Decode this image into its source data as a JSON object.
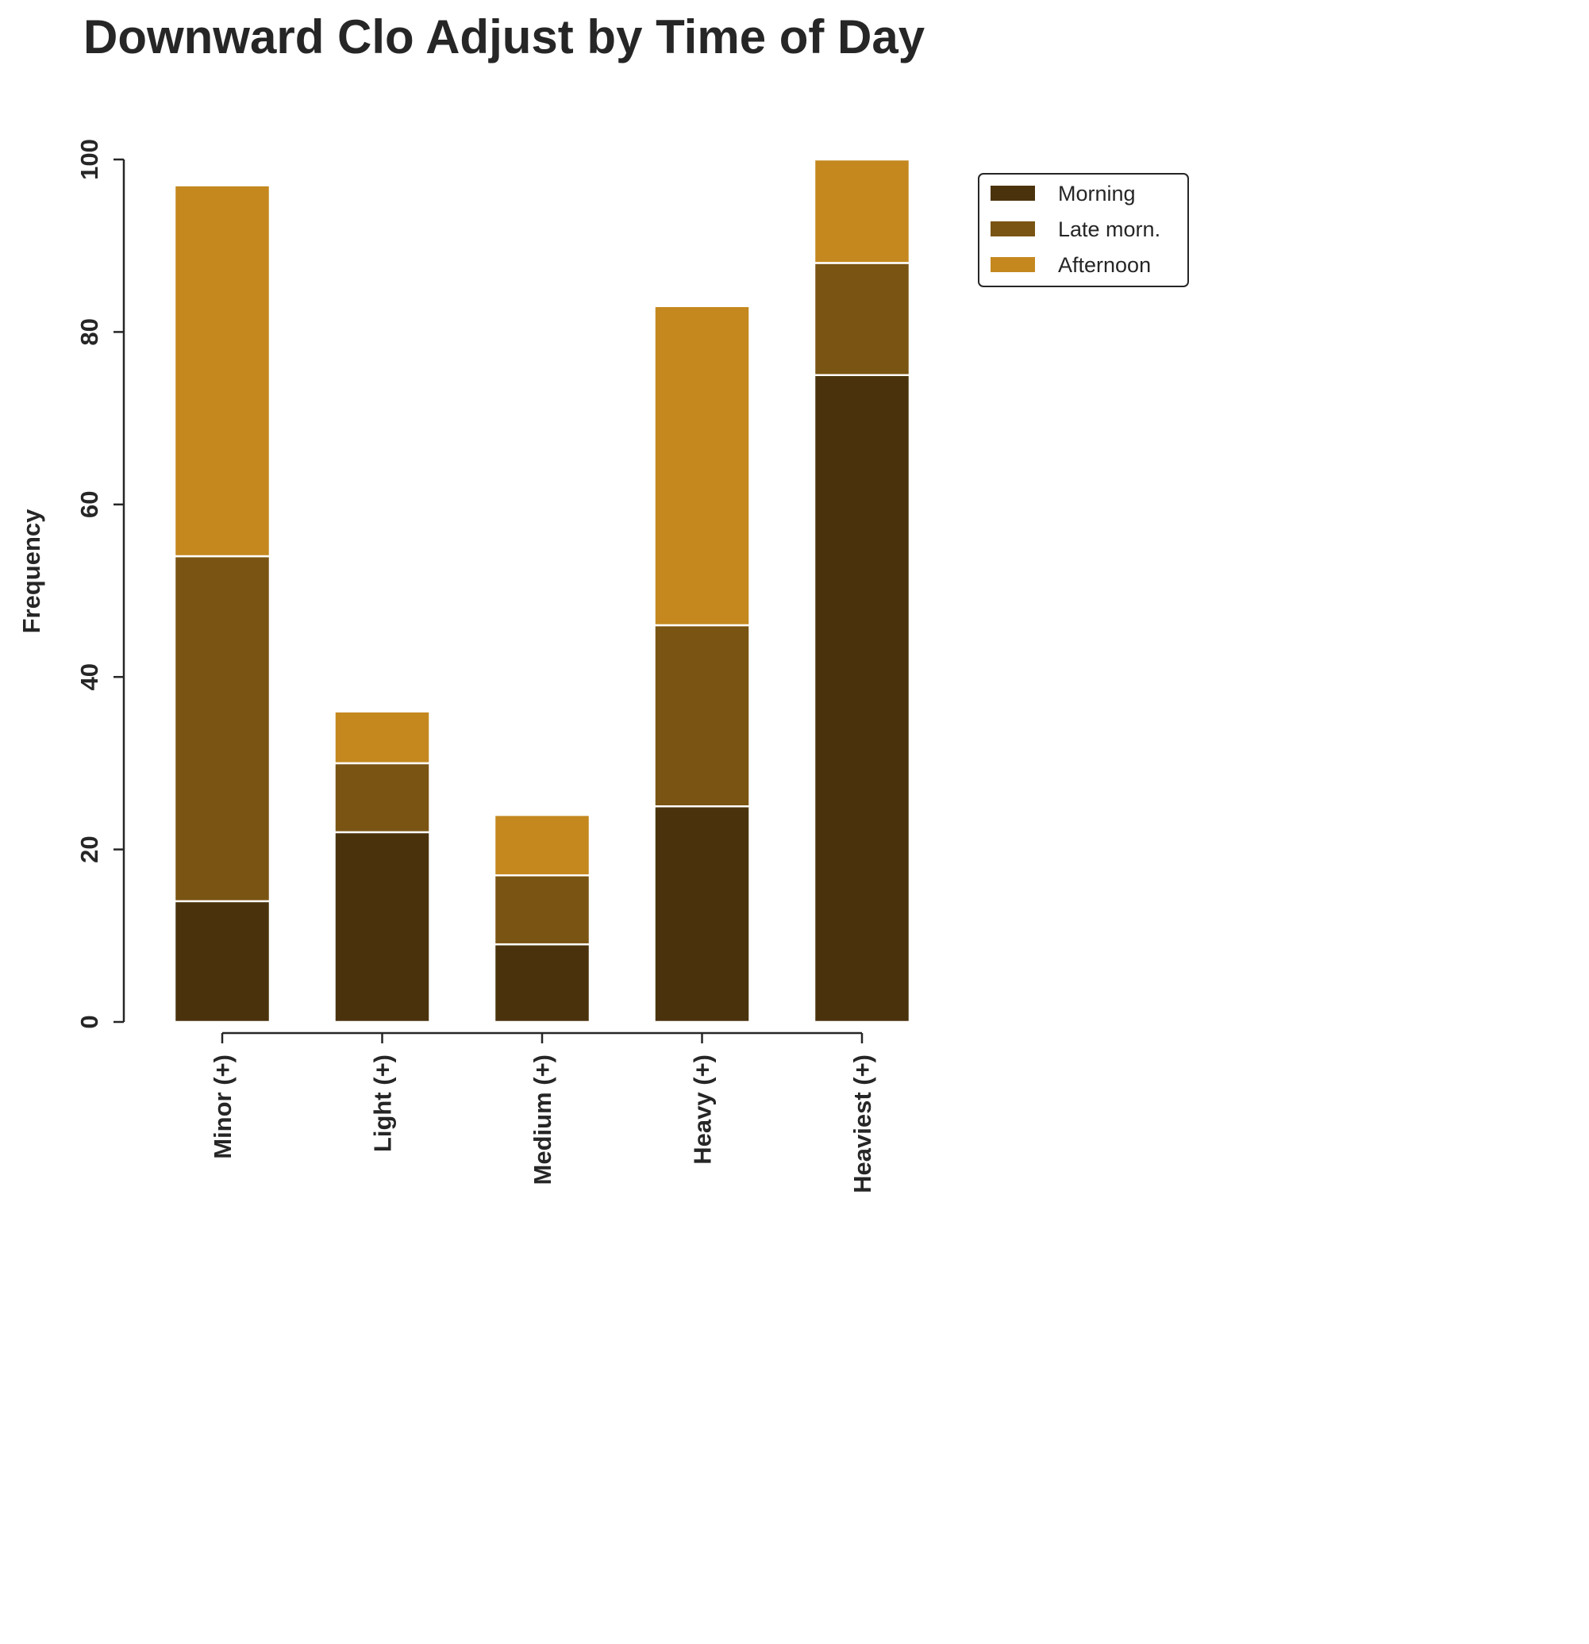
{
  "chart_data": {
    "type": "bar",
    "stacked": true,
    "title": "Downward Clo Adjust by Time of Day",
    "xlabel": "",
    "ylabel": "Frequency",
    "categories": [
      "Minor (+)",
      "Light (+)",
      "Medium (+)",
      "Heavy (+)",
      "Heaviest (+)"
    ],
    "series": [
      {
        "name": "Morning",
        "color": "#4a330c",
        "values": [
          14,
          22,
          9,
          25,
          75
        ]
      },
      {
        "name": "Late morn.",
        "color": "#7a5413",
        "values": [
          40,
          8,
          8,
          21,
          13
        ]
      },
      {
        "name": "Afternoon",
        "color": "#c4881f",
        "values": [
          43,
          6,
          7,
          37,
          12
        ]
      }
    ],
    "ylim": [
      0,
      100
    ],
    "yticks": [
      0,
      20,
      40,
      60,
      80,
      100
    ],
    "grid": false,
    "legend_position": "upper-right-outside",
    "segment_edge_color": "#ffffff",
    "axis_color": "#262626"
  }
}
